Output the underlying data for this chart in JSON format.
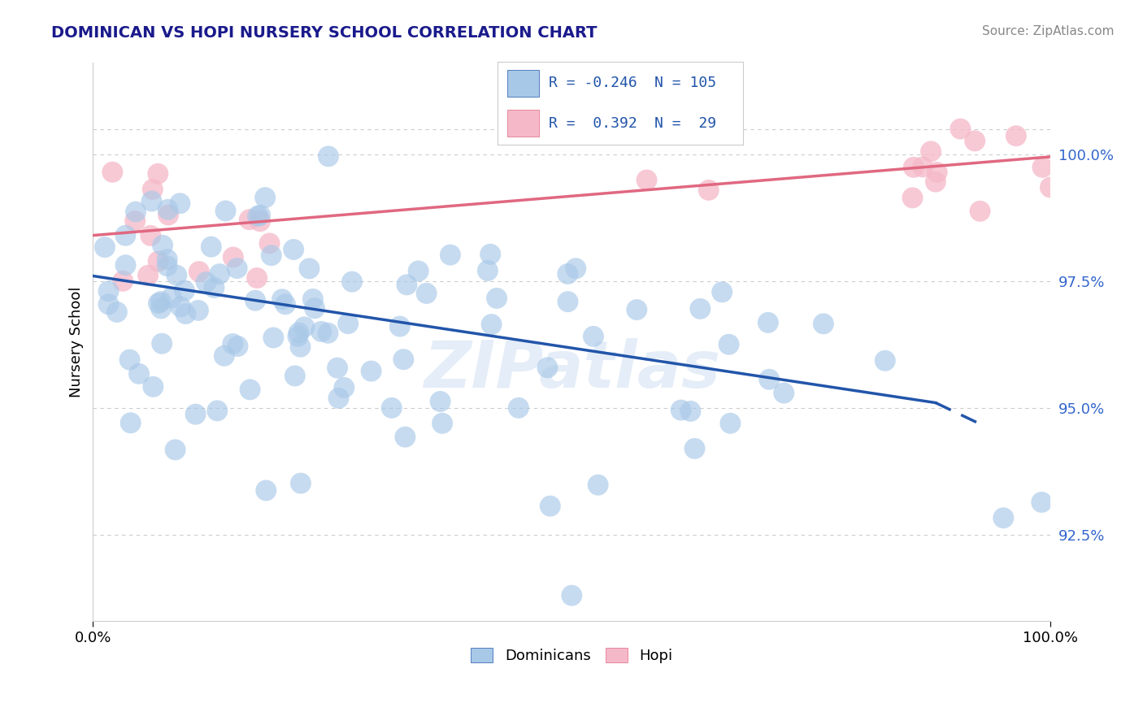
{
  "title": "DOMINICAN VS HOPI NURSERY SCHOOL CORRELATION CHART",
  "source": "Source: ZipAtlas.com",
  "ylabel": "Nursery School",
  "ytick_values": [
    0.925,
    0.95,
    0.975,
    1.0
  ],
  "xmin": 0.0,
  "xmax": 1.0,
  "ymin": 0.908,
  "ymax": 1.018,
  "legend_blue_r": "-0.246",
  "legend_blue_n": "105",
  "legend_pink_r": "0.392",
  "legend_pink_n": "29",
  "blue_color": "#a8c8e8",
  "pink_color": "#f5b8c8",
  "blue_line_color": "#2255aa",
  "pink_line_color": "#e06880",
  "watermark": "ZIPatlas",
  "title_color": "#1a1a8c",
  "grid_color": "#cccccc",
  "ytick_color": "#3366cc"
}
